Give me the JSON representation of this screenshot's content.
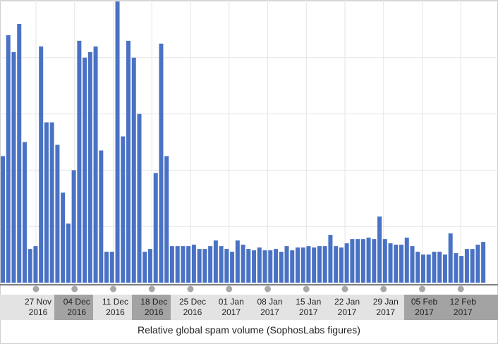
{
  "caption": "Relative global spam volume (SophosLabs figures)",
  "colors": {
    "bar": "#4a72c4",
    "grid": "#e6e6e6",
    "axis": "#7f7f7f",
    "band_light": "#e3e3e3",
    "band_dark": "#a3a3a3",
    "marker": "#a8a8a8"
  },
  "chart_data": {
    "type": "bar",
    "title": "",
    "xlabel": "Relative global spam volume (SophosLabs figures)",
    "ylabel": "",
    "ylim": [
      0,
      100
    ],
    "grid": true,
    "tick_labels": [
      {
        "line1": "27 Nov",
        "line2": "2016"
      },
      {
        "line1": "04 Dec",
        "line2": "2016"
      },
      {
        "line1": "11 Dec",
        "line2": "2016"
      },
      {
        "line1": "18 Dec",
        "line2": "2016"
      },
      {
        "line1": "25 Dec",
        "line2": "2016"
      },
      {
        "line1": "01 Jan",
        "line2": "2017"
      },
      {
        "line1": "08 Jan",
        "line2": "2017"
      },
      {
        "line1": "15 Jan",
        "line2": "2017"
      },
      {
        "line1": "22 Jan",
        "line2": "2017"
      },
      {
        "line1": "29 Jan",
        "line2": "2017"
      },
      {
        "line1": "05 Feb",
        "line2": "2017"
      },
      {
        "line1": "12 Feb",
        "line2": "2017"
      }
    ],
    "values": [
      45,
      88,
      82,
      92,
      50,
      12,
      13,
      84,
      57,
      57,
      49,
      32,
      21,
      40,
      86,
      80,
      82,
      84,
      47,
      11,
      11,
      100,
      52,
      86,
      80,
      60,
      11,
      12,
      39,
      85,
      45,
      13,
      13,
      13,
      13,
      13.5,
      12,
      12,
      13,
      15,
      13,
      12,
      11,
      15,
      13.5,
      12,
      11.5,
      12.5,
      11.5,
      11.5,
      12,
      11,
      13,
      11.5,
      12.5,
      12.5,
      13,
      12.5,
      13,
      13,
      17,
      13,
      12.5,
      14,
      15.5,
      15.5,
      15.5,
      16,
      15.5,
      23.5,
      15.5,
      14,
      13.5,
      13.5,
      16,
      13,
      11,
      10,
      10,
      11,
      11,
      10,
      17.5,
      10.5,
      9.5,
      12,
      12,
      13.5,
      14.5
    ]
  }
}
